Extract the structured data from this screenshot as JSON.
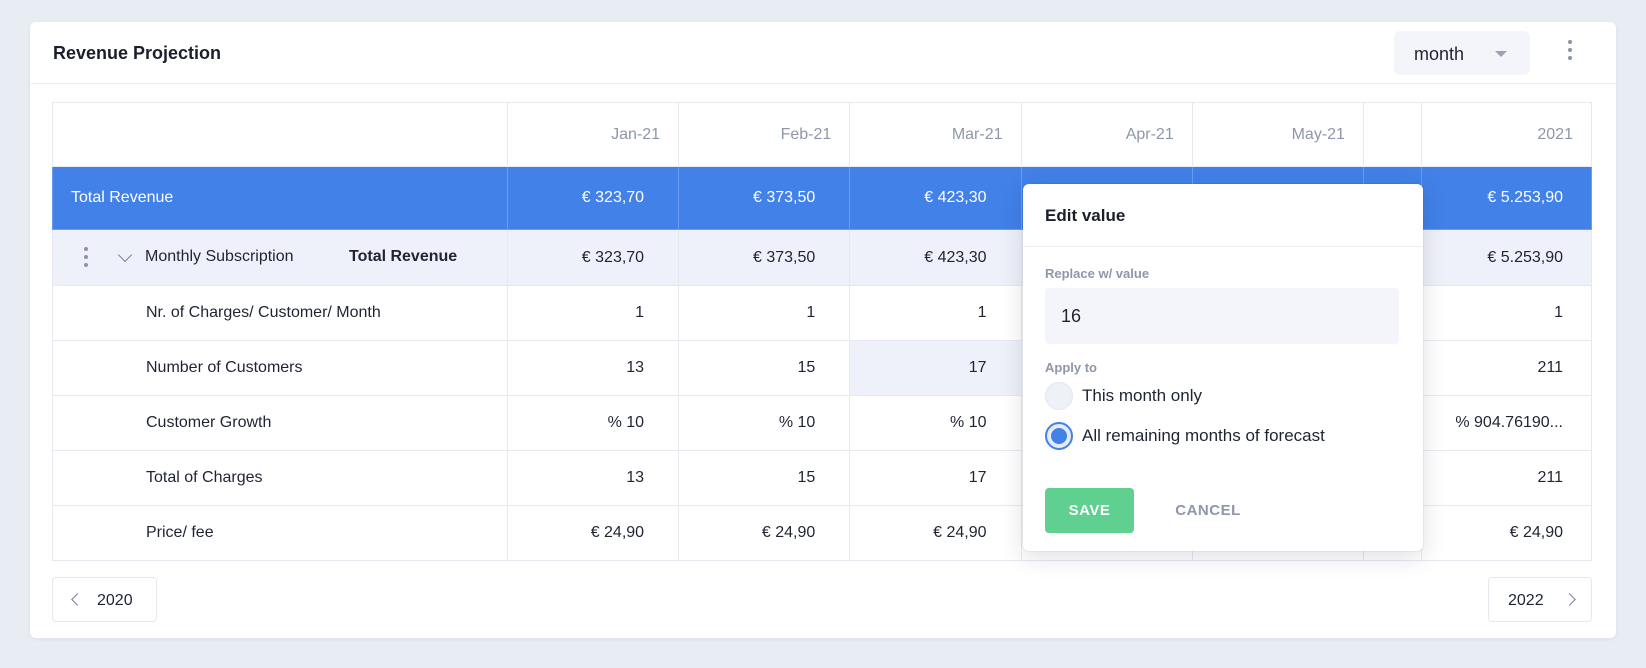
{
  "header": {
    "title": "Revenue Projection",
    "period_value": "month"
  },
  "columns": [
    "",
    "Jan-21",
    "Feb-21",
    "Mar-21",
    "Apr-21",
    "May-21",
    "",
    "2021"
  ],
  "total_row": {
    "label": "Total Revenue",
    "cells": [
      "€ 323,70",
      "€ 373,50",
      "€ 423,30",
      "",
      "",
      "",
      "€ 5.253,90"
    ]
  },
  "sub_row": {
    "name": "Monthly Subscription",
    "total_label": "Total Revenue",
    "cells": [
      "€ 323,70",
      "€ 373,50",
      "€ 423,30",
      "",
      "",
      "",
      "€ 5.253,90"
    ]
  },
  "rows": [
    {
      "label": "Nr. of Charges/ Customer/ Month",
      "cells": [
        "1",
        "1",
        "1",
        "",
        "",
        "",
        "1"
      ]
    },
    {
      "label": "Number of Customers",
      "cells": [
        "13",
        "15",
        "17",
        "",
        "",
        "",
        "211"
      ]
    },
    {
      "label": "Customer Growth",
      "cells": [
        "% 10",
        "% 10",
        "% 10",
        "",
        "",
        "",
        "% 904.76190..."
      ]
    },
    {
      "label": "Total of Charges",
      "cells": [
        "13",
        "15",
        "17",
        "",
        "",
        "",
        "211"
      ]
    },
    {
      "label": "Price/ fee",
      "cells": [
        "€ 24,90",
        "€ 24,90",
        "€ 24,90",
        "",
        "",
        "",
        "€ 24,90"
      ]
    }
  ],
  "pager": {
    "prev": "2020",
    "next": "2022"
  },
  "popover": {
    "title": "Edit value",
    "replace_label": "Replace w/ value",
    "value": "16",
    "apply_label": "Apply to",
    "options": [
      "This month only",
      "All remaining months of forecast"
    ],
    "selected_index": 1,
    "save_label": "SAVE",
    "cancel_label": "CANCEL"
  },
  "colors": {
    "accent": "#4181e8",
    "save": "#5fd08f",
    "muted": "#8e97a9"
  }
}
